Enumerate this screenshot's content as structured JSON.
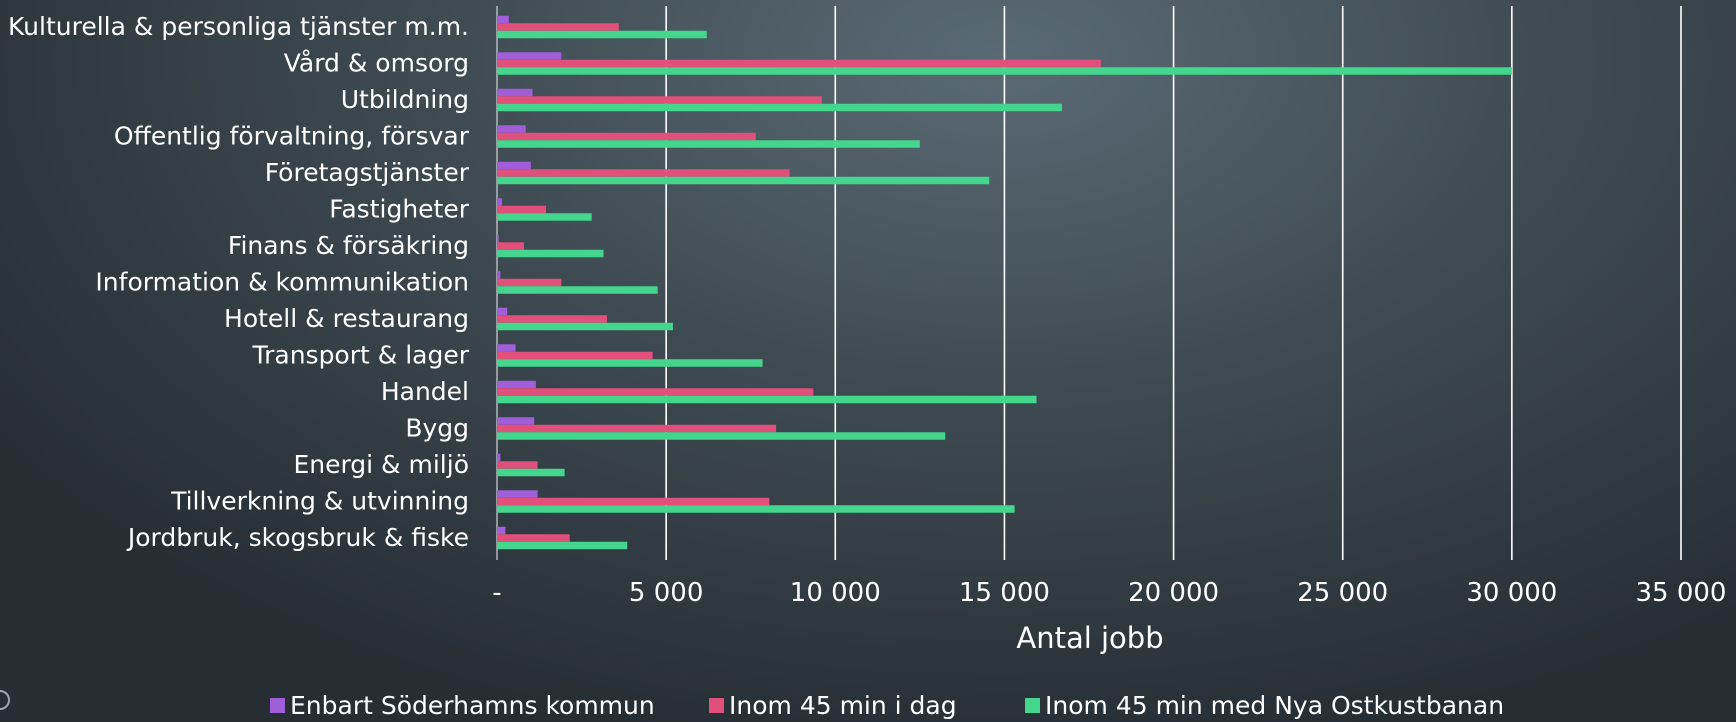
{
  "chart_data": {
    "type": "bar",
    "orientation": "horizontal",
    "categories": [
      "Kulturella & personliga tjänster m.m.",
      "Vård & omsorg",
      "Utbildning",
      "Offentlig förvaltning, försvar",
      "Företagstjänster",
      "Fastigheter",
      "Finans & försäkring",
      "Information & kommunikation",
      "Hotell & restaurang",
      "Transport & lager",
      "Handel",
      "Bygg",
      "Energi & miljö",
      "Tillverkning & utvinning",
      "Jordbruk, skogsbruk & fiske"
    ],
    "series": [
      {
        "name": "Enbart Söderhamns kommun",
        "color": "#a05ed8",
        "values": [
          350,
          1900,
          1050,
          850,
          1000,
          150,
          50,
          100,
          300,
          550,
          1150,
          1100,
          100,
          1200,
          250
        ]
      },
      {
        "name": "Inom 45 min i dag",
        "color": "#e0507a",
        "values": [
          3600,
          17850,
          9600,
          7650,
          8650,
          1450,
          800,
          1900,
          3250,
          4600,
          9350,
          8250,
          1200,
          8050,
          2150
        ]
      },
      {
        "name": "Inom 45 min med Nya Ostkustbanan",
        "color": "#44d68c",
        "values": [
          6200,
          30000,
          16700,
          12500,
          14550,
          2800,
          3150,
          4750,
          5200,
          7850,
          15950,
          13250,
          2000,
          15300,
          3850
        ]
      }
    ],
    "xlabel": "Antal jobb",
    "xlim": [
      0,
      35000
    ],
    "xticks": [
      {
        "value": 0,
        "label": "-"
      },
      {
        "value": 5000,
        "label": "5 000"
      },
      {
        "value": 10000,
        "label": "10 000"
      },
      {
        "value": 15000,
        "label": "15 000"
      },
      {
        "value": 20000,
        "label": "20 000"
      },
      {
        "value": 25000,
        "label": "25 000"
      },
      {
        "value": 30000,
        "label": "30 000"
      },
      {
        "value": 35000,
        "label": "35 000"
      }
    ],
    "grid": true,
    "legend_position": "bottom"
  }
}
